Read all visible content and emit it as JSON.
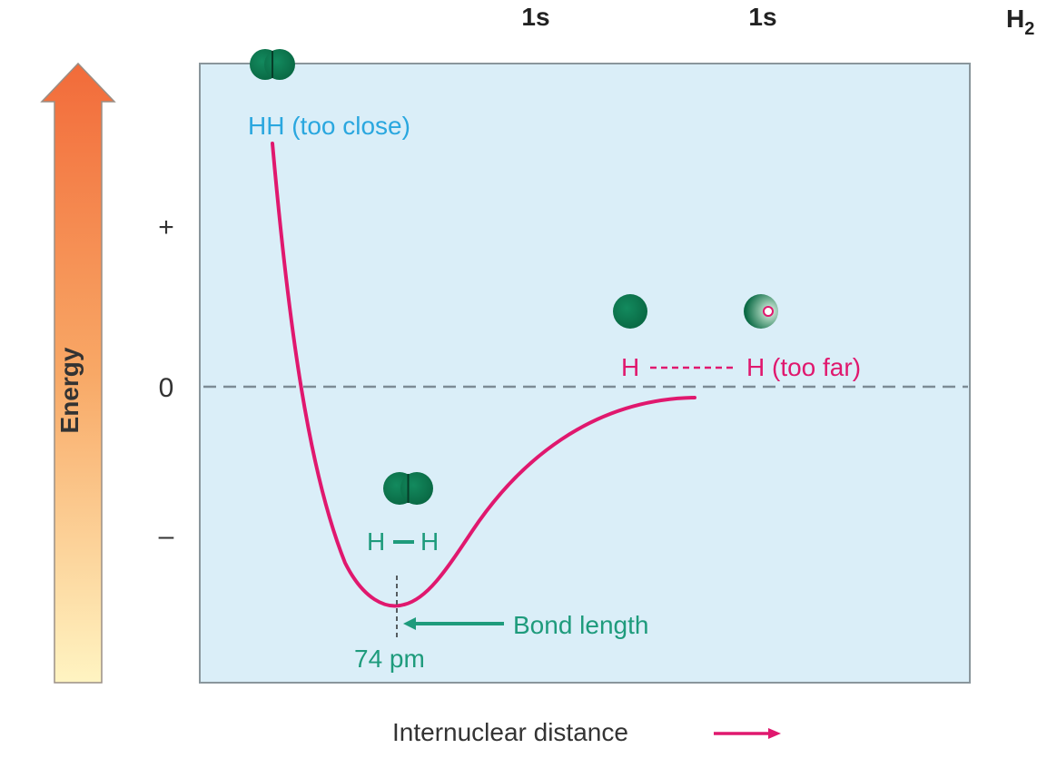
{
  "header": {
    "orbital_left": "1s",
    "orbital_right": "1s",
    "molecule_base": "H",
    "molecule_sub": "2"
  },
  "axis": {
    "y_title": "Energy",
    "y_tick_plus": "+",
    "y_tick_zero": "0",
    "y_tick_minus": "–",
    "x_title": "Internuclear distance"
  },
  "annotations": {
    "too_close": "HH (too close)",
    "bonded_left": "H",
    "bonded_right": "H",
    "far_left": "H",
    "far_right": "H (too far)",
    "bond_length_label": "Bond length",
    "bond_length_value": "74 pm"
  },
  "colors": {
    "plot_background": "#daeef8",
    "curve": "#e0186e",
    "teal_text": "#1e9b7c",
    "blue_text": "#2aa7df",
    "pink_text": "#e0186e",
    "atom": "#0d7a52",
    "zero_line": "#7d8c96",
    "arrow_top": "#f26b3a",
    "arrow_bottom": "#fff4c2"
  },
  "icons": {
    "bonded_molecule_top": "overlapping-atoms-icon",
    "bonded_molecule_middle": "overlapping-atoms-icon",
    "separated_atom": "atom-icon",
    "separated_atom_with_electron": "atom-with-electron-icon"
  }
}
